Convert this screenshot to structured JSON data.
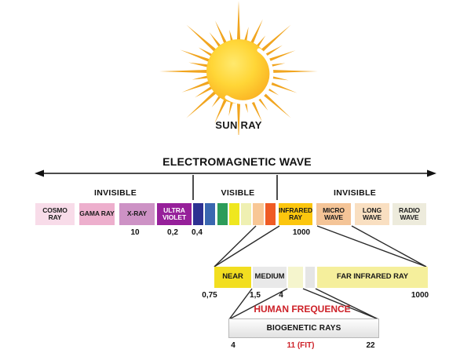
{
  "sun": {
    "label": "SUN RAY"
  },
  "title": "ELECTROMAGNETIC WAVE",
  "regions": {
    "left": "INVISIBLE",
    "middle": "VISIBLE",
    "right": "INVISIBLE"
  },
  "spectrum": {
    "segments": [
      {
        "label": "COSMO RAY",
        "color": "#f8dce9",
        "text_color": "#1a1a1a"
      },
      {
        "label": "GAMA RAY",
        "color": "#edafcd",
        "text_color": "#1a1a1a"
      },
      {
        "label": "X-RAY",
        "color": "#cd92c5",
        "text_color": "#1a1a1a"
      },
      {
        "label": "ULTRA VIOLET",
        "color": "#96209a",
        "text_color": "#ffffff"
      },
      {
        "label": "INFRARED RAY",
        "color": "#fcc60e",
        "text_color": "#1a1a1a"
      },
      {
        "label": "MICRO WAVE",
        "color": "#f4c497",
        "text_color": "#1a1a1a"
      },
      {
        "label": "LONG WAVE",
        "color": "#f9dfc1",
        "text_color": "#1a1a1a"
      },
      {
        "label": "RADIO WAVE",
        "color": "#edebdc",
        "text_color": "#1a1a1a"
      }
    ],
    "visible_swatches": [
      {
        "name": "violet-blue",
        "color": "#2e3192"
      },
      {
        "name": "blue",
        "color": "#3a67b0"
      },
      {
        "name": "green",
        "color": "#2d9c5a"
      },
      {
        "name": "yellow",
        "color": "#efe71f"
      },
      {
        "name": "pale-yellow",
        "color": "#eff0b2"
      },
      {
        "name": "peach",
        "color": "#f8c795"
      },
      {
        "name": "orange-red",
        "color": "#ef5b24"
      }
    ],
    "scale_values": [
      "10",
      "0,2",
      "0,4",
      "1000"
    ]
  },
  "infrared_detail": {
    "segments": [
      {
        "label": "NEAR",
        "color": "#f2de20",
        "text_color": "#1a1a1a"
      },
      {
        "label": "MEDIUM",
        "color": "#e9e9e9",
        "text_color": "#1a1a1a"
      },
      {
        "label": "",
        "color": "#f5f5cd",
        "text_color": "#1a1a1a"
      },
      {
        "label": "",
        "color": "#e5e5e5",
        "text_color": "#1a1a1a"
      },
      {
        "label": "FAR INFRARED RAY",
        "color": "#f5ef9c",
        "text_color": "#1a1a1a"
      }
    ],
    "scale_values": [
      "0,75",
      "1,5",
      "4",
      "1000"
    ]
  },
  "human_frequency": {
    "title": "HUMAN FREQUENCE",
    "bar_label": "BIOGENETIC RAYS",
    "scale_values": [
      "4",
      "11 (FIT)",
      "22"
    ],
    "accent_color": "#cd2027"
  }
}
